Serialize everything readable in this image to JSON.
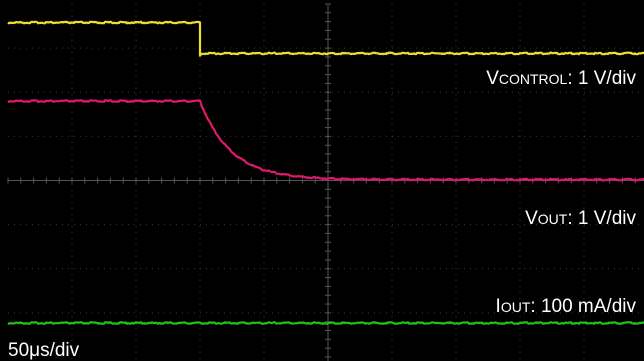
{
  "chart_data": {
    "type": "line",
    "title": "",
    "xlabel": "",
    "ylabel": "",
    "grid": true,
    "background": "#000000",
    "grid_color": "#3a3a3a",
    "grid_divisions": {
      "x": 10,
      "y": 8
    },
    "timebase": {
      "label": "50μs/div",
      "us_per_div": 50
    },
    "x_range_us": [
      0,
      500
    ],
    "series": [
      {
        "name": "VCONTROL",
        "label_main": "V",
        "label_sub": "CONTROL",
        "label_scale": ": 1 V/div",
        "color": "#e8e030",
        "shape": "step",
        "step_time_us": 150,
        "high_div": 7.58,
        "low_div": 6.88
      },
      {
        "name": "VOUT",
        "label_main": "V",
        "label_sub": "OUT",
        "label_scale": ": 1 V/div",
        "color": "#e0186c",
        "shape": "decay",
        "start_time_us": 150,
        "tau_us": 24,
        "high_div": 5.8,
        "low_div": 4.02
      },
      {
        "name": "IOUT",
        "label_main": "I",
        "label_sub": "OUT",
        "label_scale": ": 100 mA/div",
        "color": "#22c01e",
        "shape": "flat",
        "level_div": 0.77
      }
    ]
  }
}
